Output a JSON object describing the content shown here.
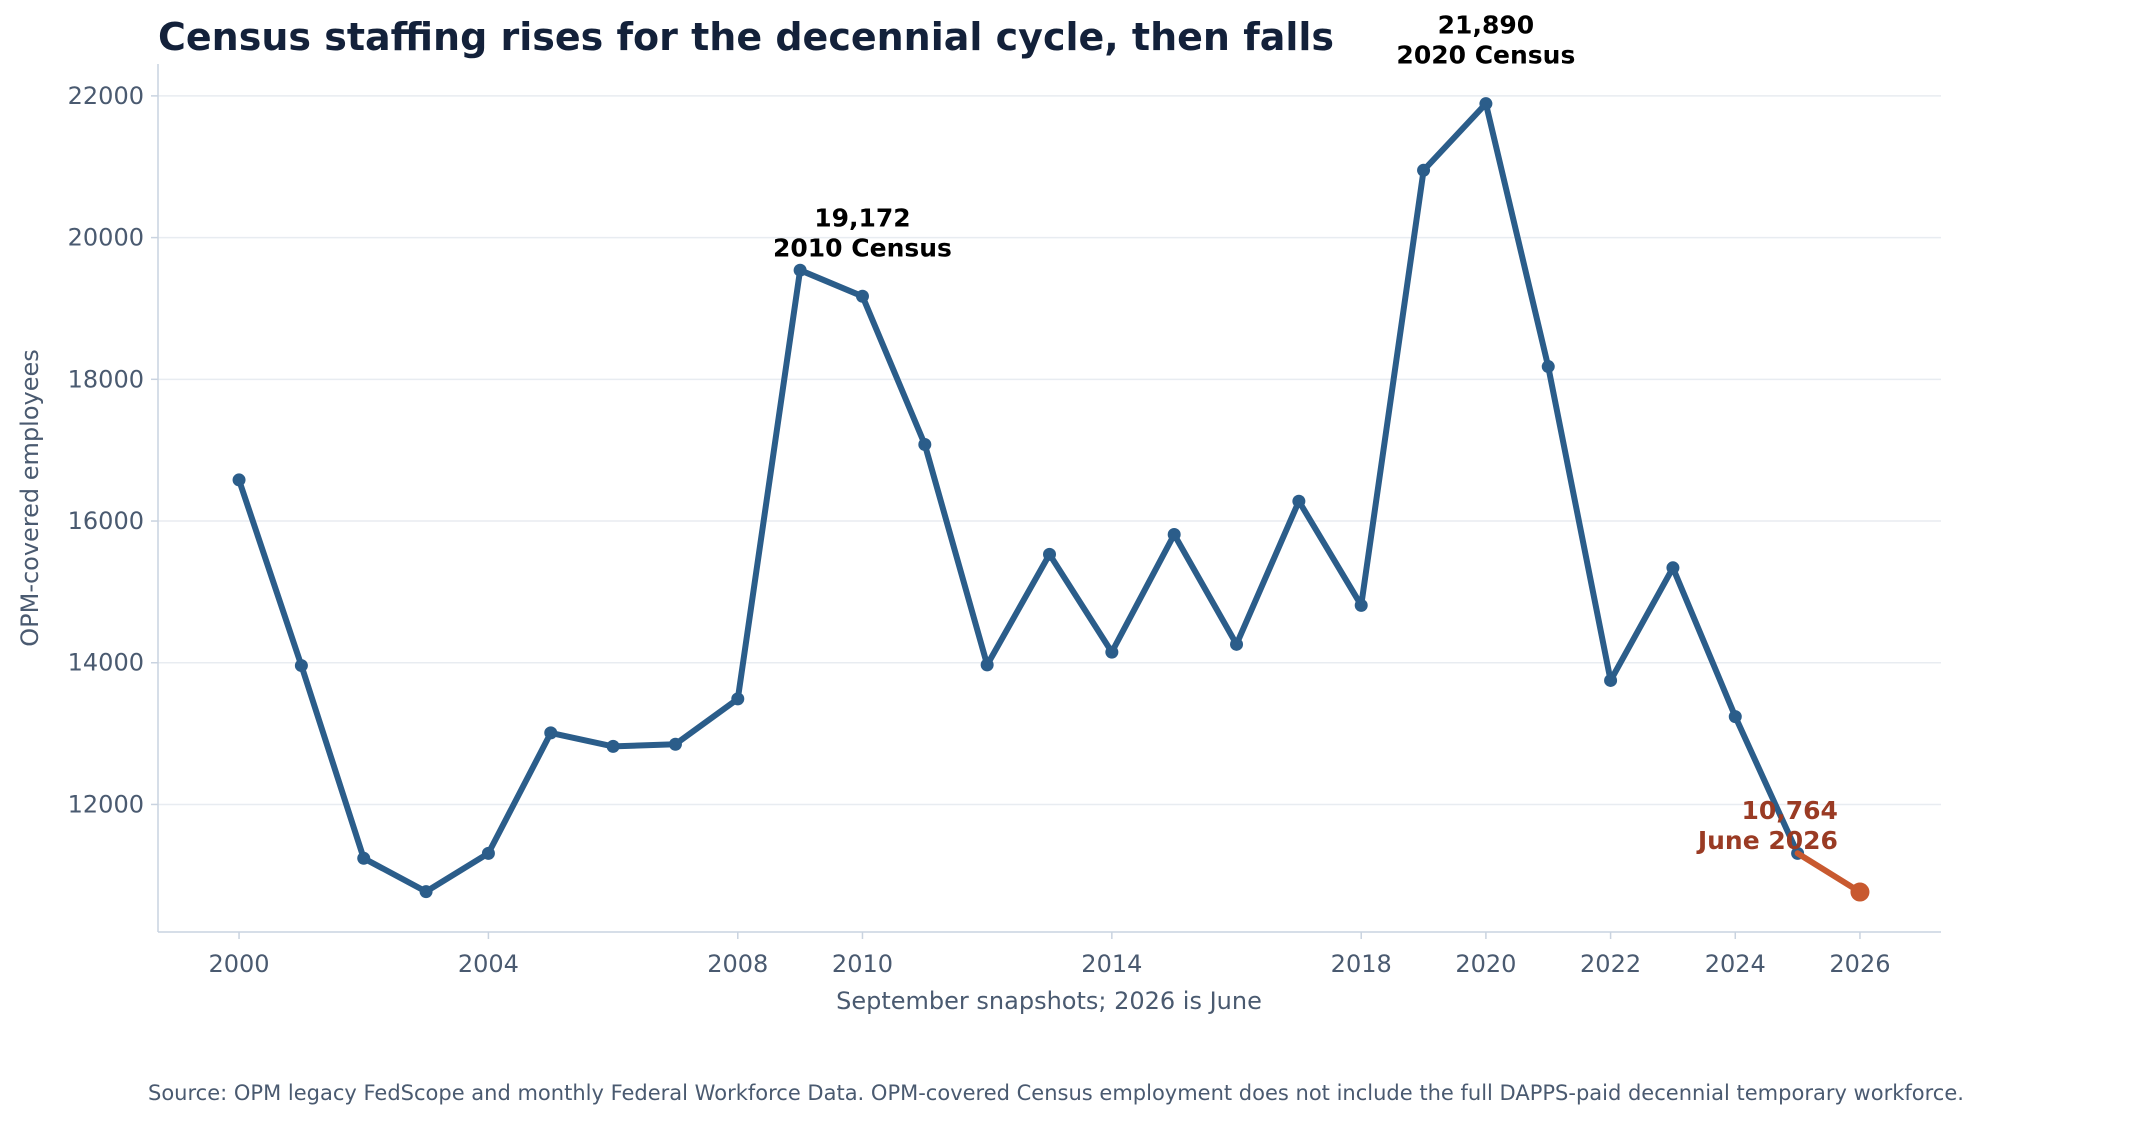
{
  "chart_data": {
    "type": "line",
    "title": "Census staffing rises for the decennial cycle, then falls",
    "xlabel": "September snapshots; 2026 is June",
    "ylabel": "OPM-covered employees",
    "xlim": [
      1998.7,
      2027.3
    ],
    "ylim": [
      10200,
      22450
    ],
    "xticks": [
      "2000",
      "2004",
      "2008",
      "2010",
      "2014",
      "2018",
      "2020",
      "2022",
      "2024",
      "2026"
    ],
    "yticks": [
      "12000",
      "14000",
      "16000",
      "18000",
      "20000",
      "22000"
    ],
    "grid": "horizontal",
    "colors": {
      "series": "#2b5d8a",
      "highlight": "#c8592f",
      "highlight_text": "#9a3b24",
      "grid": "#e8ecf1",
      "axis": "#c9d3e0"
    },
    "series": [
      {
        "x": [
          2000,
          2001,
          2002,
          2003,
          2004,
          2005,
          2006,
          2007,
          2008,
          2009,
          2010,
          2011,
          2012,
          2013,
          2014,
          2015,
          2016,
          2017,
          2018,
          2019,
          2020,
          2021,
          2022,
          2023,
          2024,
          2025
        ],
        "values": [
          16580,
          13960,
          11240,
          10770,
          11310,
          13010,
          12820,
          12850,
          13490,
          19540,
          19172,
          17080,
          13970,
          15530,
          14150,
          15810,
          14260,
          16280,
          14810,
          20950,
          21890,
          18180,
          13750,
          15340,
          13240,
          11310
        ]
      },
      {
        "x": [
          2025,
          2026
        ],
        "values": [
          11310,
          10764
        ],
        "highlight": true
      }
    ],
    "annotations": [
      {
        "x": 2010,
        "y": 19172,
        "value": "19,172",
        "label": "2010 Census"
      },
      {
        "x": 2020,
        "y": 21890,
        "value": "21,890",
        "label": "2020 Census"
      },
      {
        "x": 2026,
        "y": 10764,
        "value": "10,764",
        "label": "June 2026"
      }
    ]
  },
  "source": "Source: OPM legacy FedScope and monthly Federal Workforce Data. OPM-covered Census employment does not include the full DAPPS-paid decennial temporary workforce."
}
